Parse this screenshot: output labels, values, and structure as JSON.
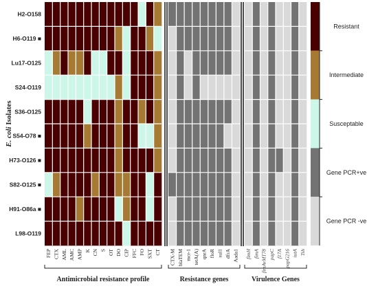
{
  "chart_data": {
    "type": "heatmap",
    "ylabel_italic": "E. coli",
    "ylabel_rest": " Isolates",
    "rows": [
      "H2-O158",
      "H6-O119",
      "Lu17-O125",
      "S24-O119",
      "S36-O125",
      "S54-O78",
      "H73-O126",
      "S82-O125",
      "H91-O86a",
      "L98-O119"
    ],
    "row_markers": [
      "",
      "■",
      "",
      "",
      "",
      "■",
      "■",
      "■",
      "■",
      ""
    ],
    "groups": [
      {
        "name": "Antimicrobial resistance profile",
        "label_style": "normal",
        "columns": [
          "FEP",
          "CTX",
          "AML",
          "AMC",
          "AMP",
          "K",
          "CN",
          "S",
          "OT",
          "DO",
          "CIP",
          "FFC",
          "FO",
          "SXT",
          "CT"
        ],
        "values": [
          [
            "R",
            "R",
            "R",
            "R",
            "R",
            "R",
            "R",
            "R",
            "R",
            "R",
            "R",
            "R",
            "S",
            "R",
            "I"
          ],
          [
            "R",
            "R",
            "R",
            "R",
            "R",
            "R",
            "R",
            "R",
            "R",
            "I",
            "S",
            "R",
            "R",
            "I",
            "S"
          ],
          [
            "S",
            "I",
            "R",
            "I",
            "I",
            "R",
            "S",
            "S",
            "R",
            "R",
            "S",
            "R",
            "R",
            "R",
            "I"
          ],
          [
            "S",
            "S",
            "S",
            "S",
            "S",
            "S",
            "S",
            "S",
            "S",
            "I",
            "S",
            "R",
            "R",
            "R",
            "I"
          ],
          [
            "R",
            "R",
            "R",
            "R",
            "R",
            "S",
            "R",
            "R",
            "R",
            "I",
            "R",
            "R",
            "I",
            "R",
            "I"
          ],
          [
            "R",
            "R",
            "R",
            "R",
            "R",
            "I",
            "R",
            "R",
            "R",
            "I",
            "R",
            "R",
            "S",
            "S",
            "I"
          ],
          [
            "R",
            "R",
            "R",
            "R",
            "R",
            "R",
            "R",
            "R",
            "R",
            "I",
            "R",
            "R",
            "R",
            "R",
            "I"
          ],
          [
            "S",
            "I",
            "R",
            "R",
            "R",
            "R",
            "I",
            "R",
            "R",
            "I",
            "I",
            "R",
            "R",
            "S",
            "R"
          ],
          [
            "R",
            "R",
            "R",
            "R",
            "I",
            "R",
            "R",
            "R",
            "R",
            "S",
            "I",
            "R",
            "R",
            "S",
            "R"
          ],
          [
            "R",
            "R",
            "R",
            "R",
            "R",
            "R",
            "R",
            "R",
            "R",
            "R",
            "S",
            "R",
            "R",
            "R",
            "R"
          ]
        ]
      },
      {
        "name": "Resistance genes",
        "label_style": "normal",
        "columns": [
          "CTX-M",
          "blaTEM",
          "mcr-1",
          "tetA(A)",
          "qnrA",
          "floR",
          "sul1",
          "dfrA",
          "Aada1"
        ],
        "values": [
          [
            "+",
            "+",
            "+",
            "+",
            "+",
            "+",
            "+",
            "+",
            "-"
          ],
          [
            "-",
            "+",
            "+",
            "+",
            "+",
            "+",
            "+",
            "+",
            "-"
          ],
          [
            "-",
            "+",
            "-",
            "+",
            "+",
            "+",
            "+",
            "+",
            "-"
          ],
          [
            "-",
            "+",
            "-",
            "+",
            "-",
            "-",
            "-",
            "-",
            "-"
          ],
          [
            "-",
            "+",
            "+",
            "+",
            "+",
            "+",
            "+",
            "+",
            "-"
          ],
          [
            "-",
            "+",
            "+",
            "+",
            "+",
            "+",
            "+",
            "-",
            "-"
          ],
          [
            "-",
            "+",
            "+",
            "+",
            "+",
            "+",
            "+",
            "+",
            "-"
          ],
          [
            "+",
            "+",
            "+",
            "+",
            "+",
            "+",
            "+",
            "+",
            "-"
          ],
          [
            "-",
            "+",
            "+",
            "+",
            "+",
            "+",
            "+",
            "+",
            "-"
          ],
          [
            "-",
            "+",
            "+",
            "+",
            "+",
            "+",
            "+",
            "+",
            "-"
          ]
        ]
      },
      {
        "name": "Virulence Genes",
        "label_style": "italic",
        "columns": [
          "fimH",
          "fimA",
          "fimAvMT78",
          "papC",
          "f17A",
          "papG216",
          "iutA",
          "Tsh"
        ],
        "values": [
          [
            "-",
            "+",
            "-",
            "+",
            "-",
            "-",
            "+",
            "-"
          ],
          [
            "-",
            "+",
            "-",
            "+",
            "-",
            "-",
            "+",
            "-"
          ],
          [
            "-",
            "+",
            "-",
            "+",
            "-",
            "-",
            "+",
            "-"
          ],
          [
            "-",
            "+",
            "-",
            "+",
            "-",
            "-",
            "+",
            "-"
          ],
          [
            "-",
            "+",
            "-",
            "+",
            "-",
            "-",
            "+",
            "-"
          ],
          [
            "-",
            "+",
            "-",
            "+",
            "-",
            "-",
            "+",
            "-"
          ],
          [
            "-",
            "+",
            "-",
            "+",
            "+",
            "-",
            "+",
            "-"
          ],
          [
            "-",
            "+",
            "-",
            "+",
            "-",
            "-",
            "+",
            "-"
          ],
          [
            "-",
            "+",
            "-",
            "+",
            "-",
            "-",
            "+",
            "-"
          ],
          [
            "-",
            "+",
            "-",
            "+",
            "-",
            "-",
            "+",
            "-"
          ]
        ]
      }
    ],
    "legend": [
      {
        "key": "R",
        "label": "Resistant",
        "color": "#4a0000"
      },
      {
        "key": "I",
        "label": "Intermediate",
        "color": "#a67a33"
      },
      {
        "key": "S",
        "label": "Susceptable",
        "color": "#ccf6e8"
      },
      {
        "key": "+",
        "label": "Gene PCR+ve",
        "color": "#737373"
      },
      {
        "key": "-",
        "label": "Gene PCR -ve",
        "color": "#d9d9d9"
      }
    ],
    "legend_placement": "right",
    "grid": true
  }
}
